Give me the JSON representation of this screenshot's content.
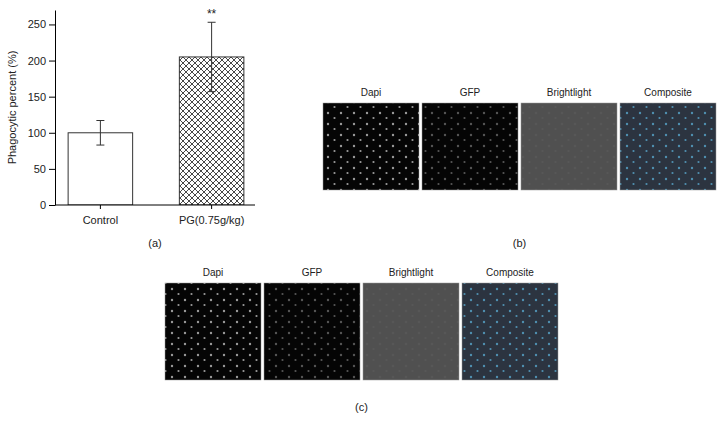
{
  "chart_data": {
    "type": "bar",
    "caption": "(a)",
    "y_label": "Phagocytic percent (%)",
    "categories": [
      "Control",
      "PG(0.75g/kg)"
    ],
    "values": [
      100,
      205
    ],
    "errors": [
      17,
      48
    ],
    "colors": [
      "#ffffff",
      "#ffffff"
    ],
    "ylim": [
      0,
      270
    ],
    "yticks": [
      0,
      50,
      100,
      150,
      200,
      250
    ],
    "annotations": [
      {
        "text": "**",
        "category": "PG(0.75g/kg)"
      }
    ]
  },
  "image_panels": [
    {
      "label": "(b)",
      "channels": [
        "Dapi",
        "GFP",
        "Brightlight",
        "Composite"
      ]
    },
    {
      "label": "(c)",
      "channels": [
        "Dapi",
        "GFP",
        "Brightlight",
        "Composite"
      ]
    }
  ]
}
